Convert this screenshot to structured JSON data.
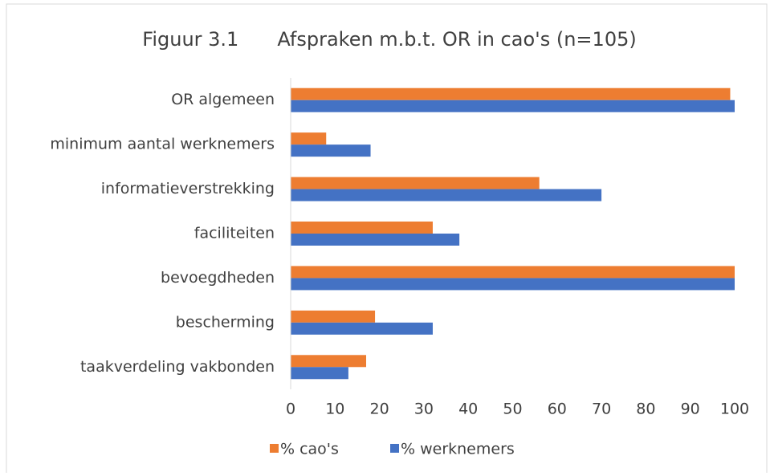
{
  "chart_data": {
    "type": "hbar",
    "title": "Figuur 3.1  Afspraken m.b.t. OR in cao's (n=105)",
    "categories": [
      "OR algemeen",
      "minimum aantal werknemers",
      "informatieverstrekking",
      "faciliteiten",
      "bevoegdheden",
      "bescherming",
      "taakverdeling vakbonden"
    ],
    "series": [
      {
        "name": "% cao's",
        "color": "#ed7d31",
        "values": [
          99,
          8,
          56,
          32,
          100,
          19,
          17
        ]
      },
      {
        "name": "% werknemers",
        "color": "#4472c4",
        "values": [
          100,
          18,
          70,
          38,
          100,
          32,
          13
        ]
      }
    ],
    "xlim": [
      0,
      100
    ],
    "xticks": [
      0,
      10,
      20,
      30,
      40,
      50,
      60,
      70,
      80,
      90,
      100
    ],
    "legend": "bottom"
  }
}
